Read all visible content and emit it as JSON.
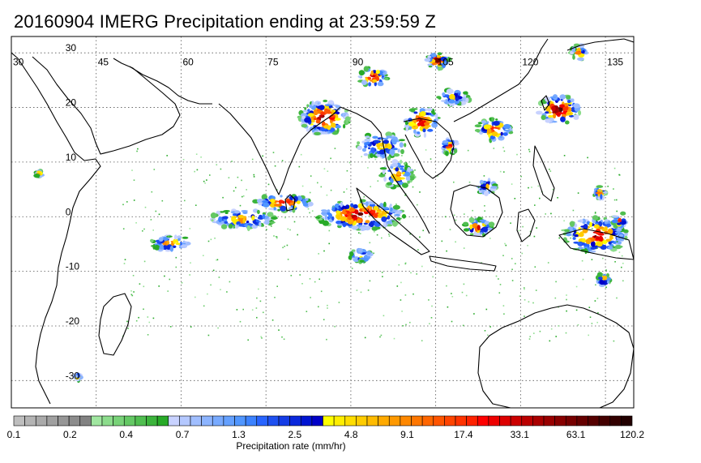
{
  "title": "20160904 IMERG Precipitation ending at 23:59:59 Z",
  "map": {
    "lon_labels": [
      "30",
      "45",
      "60",
      "75",
      "90",
      "105",
      "120",
      "135"
    ],
    "lat_labels": [
      "30",
      "20",
      "10",
      "0",
      "-10",
      "-20",
      "-30"
    ],
    "lon_range": [
      30,
      140
    ],
    "lat_range": [
      -35,
      33
    ],
    "gridlines": true,
    "colors": {
      "coast": "#000000",
      "frame": "#000000",
      "grid": "#555555"
    }
  },
  "colorbar": {
    "label": "Precipitation rate (mm/hr)",
    "tick_labels": [
      "0.1",
      "0.2",
      "0.4",
      "0.7",
      "1.3",
      "2.5",
      "4.8",
      "9.1",
      "17.4",
      "33.1",
      "63.1",
      "120.2"
    ],
    "colors": [
      "#bebebe",
      "#b4b4b4",
      "#aaaaaa",
      "#a0a0a0",
      "#969696",
      "#8c8c8c",
      "#828282",
      "#a0e6a0",
      "#8cdc8c",
      "#78d278",
      "#64c864",
      "#50be50",
      "#3cb43c",
      "#28aa28",
      "#c8d2ff",
      "#b4c8ff",
      "#a0beff",
      "#8cb4ff",
      "#78aaff",
      "#64a0ff",
      "#5096ff",
      "#3c82ff",
      "#2864ff",
      "#1e50f0",
      "#143ce6",
      "#0a28dc",
      "#0014d2",
      "#0000c8",
      "#ffff00",
      "#ffee00",
      "#ffdd00",
      "#ffcc00",
      "#ffbb00",
      "#ffaa00",
      "#ff9900",
      "#ff8800",
      "#ff7700",
      "#ff6600",
      "#ff5500",
      "#ff4400",
      "#ff3300",
      "#ff2200",
      "#ff0000",
      "#ee0000",
      "#dd0000",
      "#cc0000",
      "#bb0000",
      "#aa0000",
      "#990000",
      "#880000",
      "#770000",
      "#660000",
      "#550000",
      "#440000",
      "#330000",
      "#220000"
    ]
  }
}
